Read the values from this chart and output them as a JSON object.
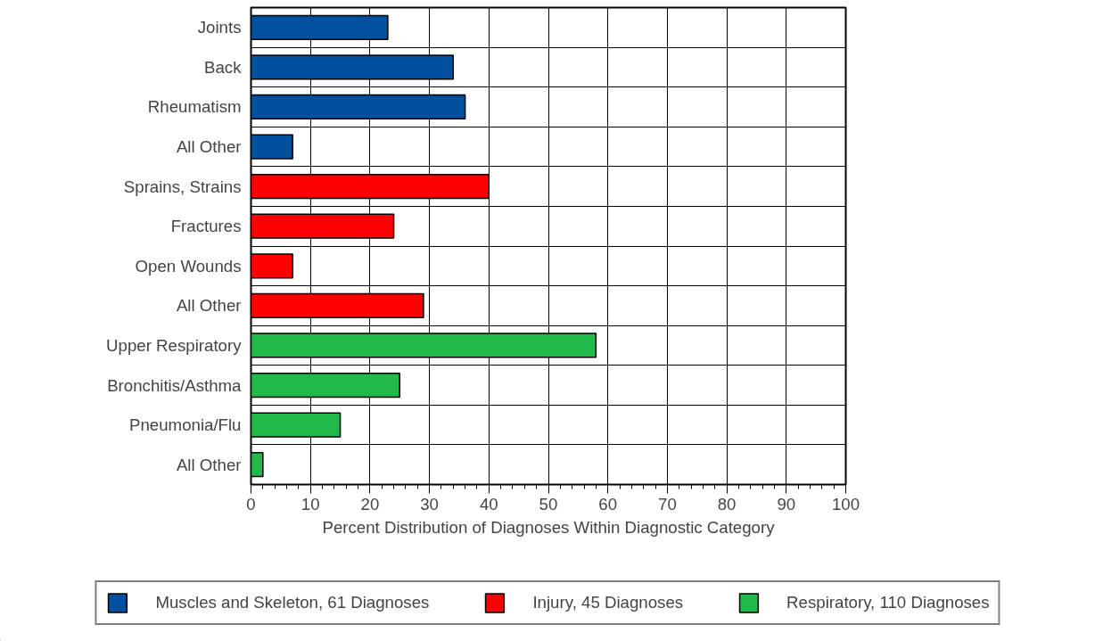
{
  "chart_data": {
    "type": "bar",
    "orientation": "horizontal",
    "xlabel": "Percent Distribution of Diagnoses Within Diagnostic Category",
    "categories": [
      "Joints",
      "Back",
      "Rheumatism",
      "All Other",
      "Sprains, Strains",
      "Fractures",
      "Open Wounds",
      "All Other",
      "Upper Respiratory",
      "Bronchitis/Asthma",
      "Pneumonia/Flu",
      "All Other"
    ],
    "series": [
      {
        "name": "Muscles and Skeleton, 61 Diagnoses",
        "color": "#0050a0",
        "values": [
          23,
          34,
          36,
          7,
          null,
          null,
          null,
          null,
          null,
          null,
          null,
          null
        ]
      },
      {
        "name": "Injury, 45 Diagnoses",
        "color": "#ff0000",
        "values": [
          null,
          null,
          null,
          null,
          40,
          24,
          7,
          29,
          null,
          null,
          null,
          null
        ]
      },
      {
        "name": "Respiratory, 110 Diagnoses",
        "color": "#1fba4a",
        "values": [
          null,
          null,
          null,
          null,
          null,
          null,
          null,
          null,
          58,
          25,
          15,
          2
        ]
      }
    ],
    "xlim": [
      0,
      100
    ],
    "xticks": [
      0,
      10,
      20,
      30,
      40,
      50,
      60,
      70,
      80,
      90,
      100
    ],
    "grid": true,
    "legend": "bottom"
  }
}
